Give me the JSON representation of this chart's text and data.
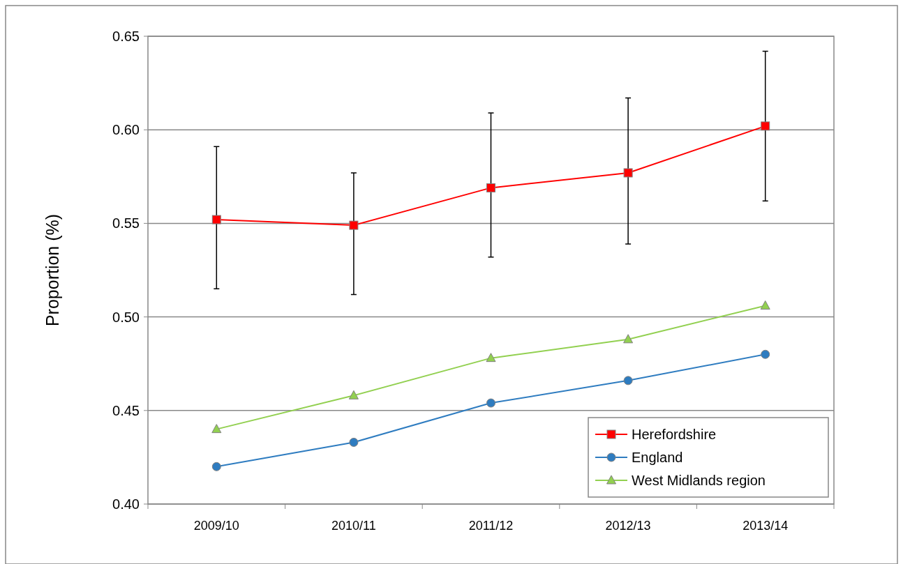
{
  "chart_data": {
    "type": "line",
    "ylabel": "Proportion (%)",
    "categories": [
      "2009/10",
      "2010/11",
      "2011/12",
      "2012/13",
      "2013/14"
    ],
    "ylim": [
      0.4,
      0.65
    ],
    "yticks": [
      {
        "value": 0.4,
        "label": "0.40"
      },
      {
        "value": 0.45,
        "label": "0.45"
      },
      {
        "value": 0.5,
        "label": "0.50"
      },
      {
        "value": 0.55,
        "label": "0.55"
      },
      {
        "value": 0.6,
        "label": "0.60"
      },
      {
        "value": 0.65,
        "label": "0.65"
      }
    ],
    "grid": "y",
    "legend": "bottom right",
    "series": [
      {
        "name": "Herefordshire",
        "color": "#ff0000",
        "marker": "square",
        "values": [
          0.552,
          0.549,
          0.569,
          0.577,
          0.602
        ],
        "errors": [
          [
            0.515,
            0.591
          ],
          [
            0.512,
            0.577
          ],
          [
            0.532,
            0.609
          ],
          [
            0.539,
            0.617
          ],
          [
            0.562,
            0.642
          ]
        ]
      },
      {
        "name": "England",
        "color": "#2e7cc0",
        "marker": "circle",
        "values": [
          0.42,
          0.433,
          0.454,
          0.466,
          0.48
        ]
      },
      {
        "name": "West Midlands region",
        "color": "#92d050",
        "marker": "triangle",
        "values": [
          0.44,
          0.458,
          0.478,
          0.488,
          0.506
        ]
      }
    ]
  }
}
